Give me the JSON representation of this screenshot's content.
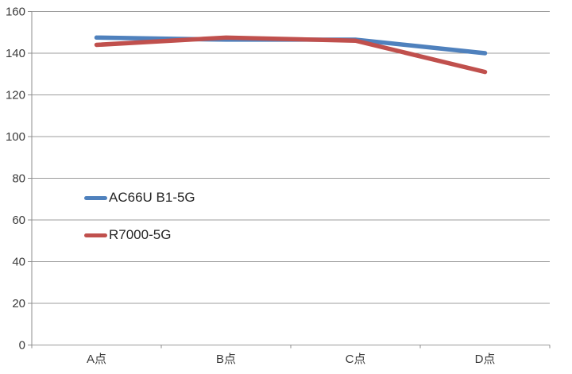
{
  "chart_data": {
    "type": "line",
    "title": "",
    "xlabel": "",
    "ylabel": "",
    "categories": [
      "A点",
      "B点",
      "C点",
      "D点"
    ],
    "series": [
      {
        "name": "AC66U B1-5G",
        "color": "#4F81BD",
        "values": [
          147.5,
          146.5,
          146.5,
          140
        ]
      },
      {
        "name": "R7000-5G",
        "color": "#C0504D",
        "values": [
          144,
          147.5,
          146,
          131
        ]
      }
    ],
    "ylim": [
      0,
      160
    ],
    "yticks": [
      0,
      20,
      40,
      60,
      80,
      100,
      120,
      140,
      160
    ],
    "grid": true,
    "legend_position": "inside-left-middle",
    "colors": {
      "background": "#FFFFFF",
      "gridline": "#9C9C9C",
      "axis_line": "#8C8C8C",
      "tick_label": "#3A3A3A",
      "legend_text": "#262626"
    }
  }
}
